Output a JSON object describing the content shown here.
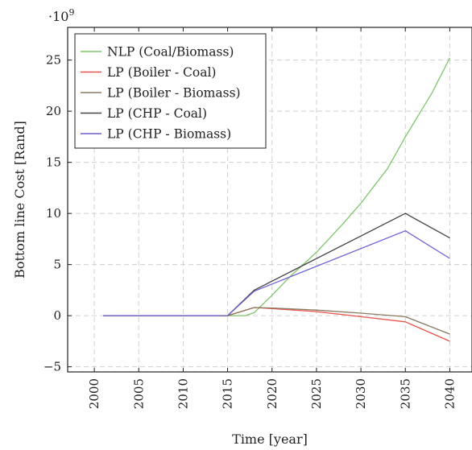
{
  "chart_data": {
    "type": "line",
    "xlabel": "Time [year]",
    "ylabel": "Bottom line Cost [Rand]",
    "y_multiplier": "·10",
    "y_exponent": "9",
    "xlim": [
      1997,
      2042.5
    ],
    "ylim": [
      -5.5,
      28.2
    ],
    "x_ticks": [
      2000,
      2005,
      2010,
      2015,
      2020,
      2025,
      2030,
      2035,
      2040
    ],
    "y_ticks": [
      -5,
      0,
      5,
      10,
      15,
      20,
      25
    ],
    "grid": true,
    "legend_position": "top-left",
    "series": [
      {
        "name": "NLP (Coal/Biomass)",
        "color": "#7dc66b",
        "x": [
          2001,
          2015,
          2017,
          2018,
          2020,
          2022,
          2025,
          2028,
          2030,
          2033,
          2035,
          2038,
          2040
        ],
        "y": [
          0,
          0,
          0,
          0.3,
          2.0,
          3.8,
          6.2,
          9.0,
          11.0,
          14.4,
          17.5,
          21.8,
          25.2
        ]
      },
      {
        "name": "LP (Boiler - Coal)",
        "color": "#e8534a",
        "x": [
          2001,
          2015,
          2018,
          2020,
          2025,
          2030,
          2035,
          2040
        ],
        "y": [
          0,
          0,
          0.8,
          0.7,
          0.4,
          -0.1,
          -0.6,
          -2.5
        ]
      },
      {
        "name": "LP (Boiler - Biomass)",
        "color": "#8a7a62",
        "x": [
          2001,
          2015,
          2018,
          2020,
          2025,
          2030,
          2035,
          2040
        ],
        "y": [
          0,
          0,
          0.8,
          0.75,
          0.55,
          0.25,
          -0.1,
          -1.8
        ]
      },
      {
        "name": "LP (CHP - Coal)",
        "color": "#444444",
        "x": [
          2001,
          2015,
          2018,
          2035,
          2040
        ],
        "y": [
          0,
          0,
          2.5,
          10.0,
          7.6
        ]
      },
      {
        "name": "LP (CHP - Biomass)",
        "color": "#6a5fd0",
        "x": [
          2001,
          2015,
          2018,
          2035,
          2040
        ],
        "y": [
          0,
          0,
          2.4,
          8.3,
          5.6
        ]
      }
    ]
  }
}
